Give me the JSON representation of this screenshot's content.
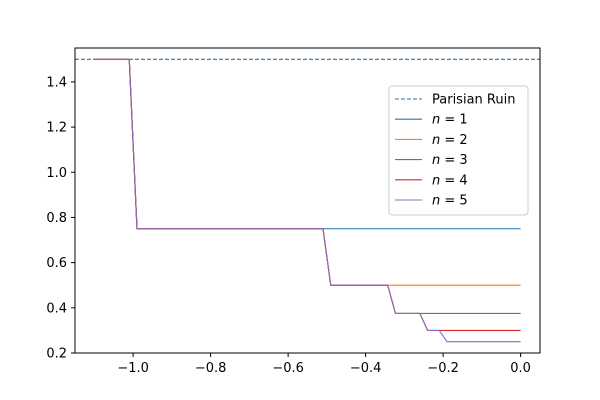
{
  "chart_data": {
    "type": "line",
    "title": "",
    "xlabel": "",
    "ylabel": "",
    "xlim": [
      -1.15,
      0.05
    ],
    "ylim": [
      0.2,
      1.55
    ],
    "grid": false,
    "legend_placement": "center-right",
    "x_ticks": [
      -1.0,
      -0.8,
      -0.6,
      -0.4,
      -0.2,
      0.0
    ],
    "x_tick_labels": [
      "−1.0",
      "−0.8",
      "−0.6",
      "−0.4",
      "−0.2",
      "0.0"
    ],
    "y_ticks": [
      0.2,
      0.4,
      0.6,
      0.8,
      1.0,
      1.2,
      1.4
    ],
    "y_tick_labels": [
      "0.2",
      "0.4",
      "0.6",
      "0.8",
      "1.0",
      "1.2",
      "1.4"
    ],
    "series": [
      {
        "name": "Parisian Ruin",
        "legend_var": "",
        "legend_value": "",
        "color": "#1f77b4",
        "dashed": true,
        "x": [
          -1.15,
          0.05
        ],
        "y": [
          1.5,
          1.5
        ]
      },
      {
        "name": "n = 1",
        "legend_var": "n",
        "legend_value": " = 1",
        "color": "#1f77b4",
        "dashed": false,
        "x": [
          -1.1,
          -1.01,
          -0.99,
          0.0
        ],
        "y": [
          1.5,
          1.5,
          0.75,
          0.75
        ]
      },
      {
        "name": "n = 2",
        "legend_var": "n",
        "legend_value": " = 2",
        "color": "#ff7f0e",
        "dashed": false,
        "x": [
          -1.1,
          -1.01,
          -0.99,
          -0.51,
          -0.49,
          0.0
        ],
        "y": [
          1.5,
          1.5,
          0.75,
          0.75,
          0.5,
          0.5
        ]
      },
      {
        "name": "n = 3",
        "legend_var": "n",
        "legend_value": " = 3",
        "color": "#2ca02c",
        "dashed": false,
        "x": [
          -1.1,
          -1.01,
          -0.99,
          -0.51,
          -0.49,
          -0.343,
          -0.323,
          0.0
        ],
        "y": [
          1.5,
          1.5,
          0.75,
          0.75,
          0.5,
          0.5,
          0.375,
          0.375
        ]
      },
      {
        "name": "n = 4",
        "legend_var": "n",
        "legend_value": " = 4",
        "color": "#d62728",
        "dashed": false,
        "x": [
          -1.1,
          -1.01,
          -0.99,
          -0.51,
          -0.49,
          -0.343,
          -0.323,
          -0.26,
          -0.24,
          0.0
        ],
        "y": [
          1.5,
          1.5,
          0.75,
          0.75,
          0.5,
          0.5,
          0.375,
          0.375,
          0.3,
          0.3
        ]
      },
      {
        "name": "n = 5",
        "legend_var": "n",
        "legend_value": " = 5",
        "color": "#9467bd",
        "dashed": false,
        "x": [
          -1.1,
          -1.01,
          -0.99,
          -0.51,
          -0.49,
          -0.343,
          -0.323,
          -0.26,
          -0.24,
          -0.21,
          -0.19,
          0.0
        ],
        "y": [
          1.5,
          1.5,
          0.75,
          0.75,
          0.5,
          0.5,
          0.375,
          0.375,
          0.3,
          0.3,
          0.25,
          0.25
        ]
      }
    ]
  }
}
